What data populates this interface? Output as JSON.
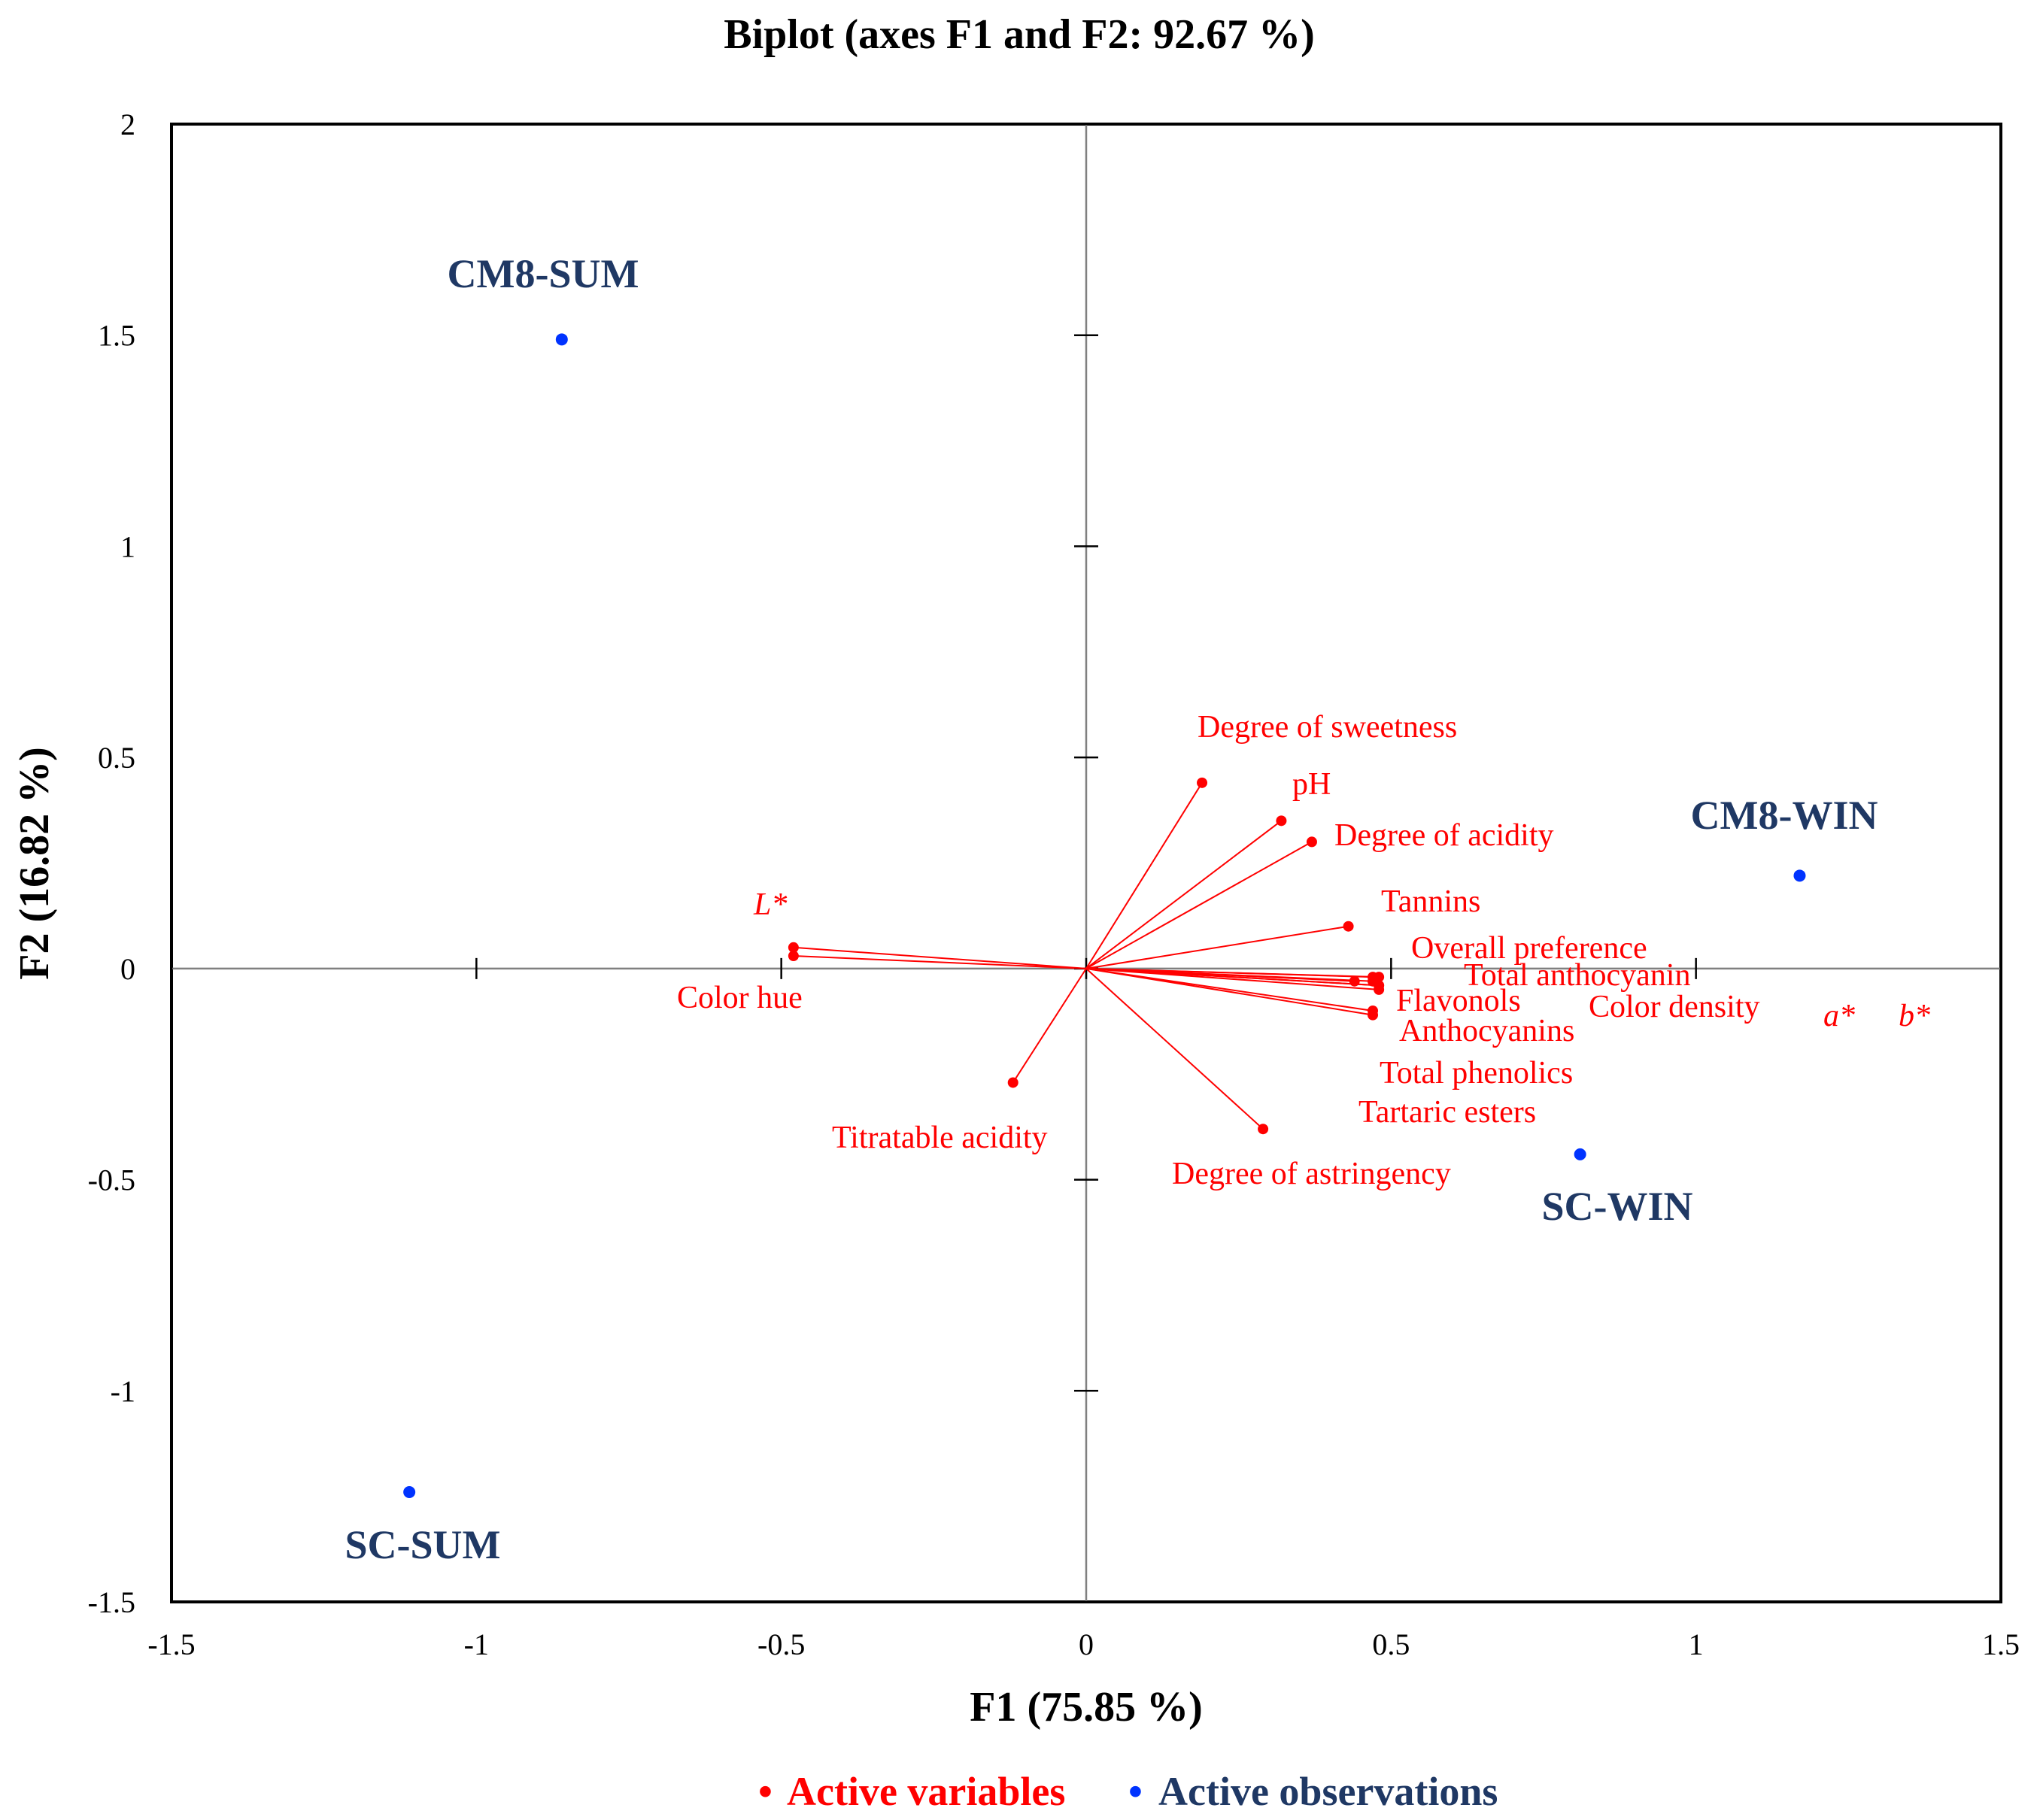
{
  "chart_data": {
    "type": "scatter",
    "subtype": "biplot",
    "title": "Biplot (axes F1 and F2: 92.67 %)",
    "xlabel": "F1 (75.85 %)",
    "ylabel": "F2 (16.82 %)",
    "xlim": [
      -1.5,
      1.5
    ],
    "ylim": [
      -1.5,
      2
    ],
    "x_ticks": [
      -1.5,
      -1,
      -0.5,
      0,
      0.5,
      1,
      1.5
    ],
    "x_tick_labels": [
      "-1.5",
      "-1",
      "-0.5",
      "0",
      "0.5",
      "1",
      "1.5"
    ],
    "y_ticks": [
      -1.5,
      -1,
      -0.5,
      0,
      0.5,
      1,
      1.5,
      2
    ],
    "y_tick_labels": [
      "-1.5",
      "-1",
      "-0.5",
      "0",
      "0.5",
      "1",
      "1.5",
      "2"
    ],
    "colors": {
      "variables": "#ff0000",
      "observations": "#1f3864",
      "observation_points": "#0033ff"
    },
    "legend": {
      "position": "bottom-center",
      "items": [
        {
          "marker": "•",
          "label": "Active variables",
          "color": "#ff0000"
        },
        {
          "marker": "•",
          "label": "Active observations",
          "color": "#1f3864"
        }
      ]
    },
    "variables": [
      {
        "name": "Degree of sweetness",
        "x": 0.19,
        "y": 0.44
      },
      {
        "name": "pH",
        "x": 0.32,
        "y": 0.35
      },
      {
        "name": "Degree of acidity",
        "x": 0.37,
        "y": 0.3
      },
      {
        "name": "Tannins",
        "x": 0.43,
        "y": 0.1
      },
      {
        "name": "Overall preference",
        "x": 0.47,
        "y": -0.02
      },
      {
        "name": "Total anthocyanin",
        "x": 0.48,
        "y": -0.02
      },
      {
        "name": "Flavonols",
        "x": 0.44,
        "y": -0.03
      },
      {
        "name": "Color density",
        "x": 0.48,
        "y": -0.04
      },
      {
        "name": "a*",
        "x": 0.48,
        "y": -0.05,
        "italic": true
      },
      {
        "name": "b*",
        "x": 0.47,
        "y": -0.11,
        "italic": true
      },
      {
        "name": "Anthocyanins",
        "x": 0.47,
        "y": -0.1
      },
      {
        "name": "Total phenolics",
        "x": 0.48,
        "y": -0.04
      },
      {
        "name": "Tartaric esters",
        "x": 0.47,
        "y": -0.03
      },
      {
        "name": "Degree of astringency",
        "x": 0.29,
        "y": -0.38
      },
      {
        "name": "Titratable acidity",
        "x": -0.12,
        "y": -0.27
      },
      {
        "name": "L*",
        "x": -0.48,
        "y": 0.05,
        "italic": true
      },
      {
        "name": "Color hue",
        "x": -0.48,
        "y": 0.03
      }
    ],
    "observations": [
      {
        "name": "CM8-SUM",
        "x": -0.86,
        "y": 1.49
      },
      {
        "name": "CM8-WIN",
        "x": 1.17,
        "y": 0.22
      },
      {
        "name": "SC-WIN",
        "x": 0.81,
        "y": -0.44
      },
      {
        "name": "SC-SUM",
        "x": -1.11,
        "y": -1.24
      }
    ]
  }
}
